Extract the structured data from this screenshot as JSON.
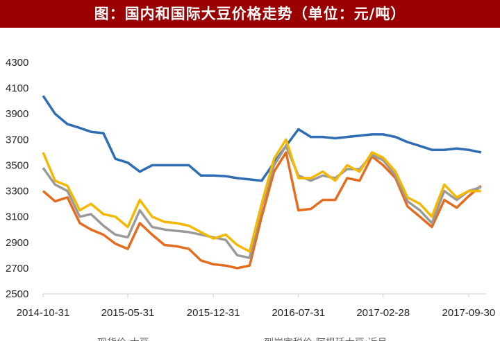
{
  "title": "图：国内和国际大豆价格走势（单位：元/吨）",
  "chart_data": {
    "type": "line",
    "title": "图：国内和国际大豆价格走势（单位：元/吨）",
    "ylim": [
      2500,
      4300
    ],
    "yticks": [
      2500,
      2700,
      2900,
      3100,
      3300,
      3500,
      3700,
      3900,
      4100,
      4300
    ],
    "xticks": [
      "2014-10-31",
      "2015-05-31",
      "2015-12-31",
      "2016-07-31",
      "2017-02-28",
      "2017-09-30"
    ],
    "grid": false,
    "legend_position": "bottom",
    "legend_entries": [
      "现货价:大豆",
      "到岸完税价:阿根廷大豆:近月"
    ],
    "x": [
      "2014-10-31",
      "2014-11-30",
      "2014-12-31",
      "2015-01-31",
      "2015-02-28",
      "2015-03-31",
      "2015-04-30",
      "2015-05-31",
      "2015-06-30",
      "2015-07-31",
      "2015-08-31",
      "2015-09-30",
      "2015-10-31",
      "2015-11-30",
      "2015-12-31",
      "2016-01-31",
      "2016-02-29",
      "2016-03-31",
      "2016-04-30",
      "2016-05-31",
      "2016-06-30",
      "2016-07-31",
      "2016-08-31",
      "2016-09-30",
      "2016-10-31",
      "2016-11-30",
      "2016-12-31",
      "2017-01-31",
      "2017-02-28",
      "2017-03-31",
      "2017-04-30",
      "2017-05-31",
      "2017-06-30",
      "2017-07-31",
      "2017-08-31",
      "2017-09-30",
      "2017-10-31"
    ],
    "series": [
      {
        "color": "#2e6db4",
        "values": [
          4040,
          3900,
          3820,
          3790,
          3760,
          3750,
          3550,
          3520,
          3450,
          3500,
          3500,
          3500,
          3500,
          3420,
          3420,
          3415,
          3400,
          3390,
          3380,
          3520,
          3650,
          3780,
          3720,
          3720,
          3710,
          3720,
          3730,
          3740,
          3740,
          3720,
          3680,
          3650,
          3620,
          3620,
          3630,
          3620,
          3600
        ]
      },
      {
        "color": "#e36c1e",
        "values": [
          3300,
          3220,
          3250,
          3050,
          3000,
          2960,
          2890,
          2850,
          3050,
          2960,
          2880,
          2870,
          2850,
          2760,
          2730,
          2720,
          2700,
          2720,
          3100,
          3450,
          3600,
          3150,
          3160,
          3230,
          3230,
          3400,
          3380,
          3570,
          3500,
          3400,
          3180,
          3100,
          3020,
          3230,
          3170,
          3260,
          3340
        ]
      },
      {
        "color": "#9a9a9a",
        "values": [
          3480,
          3350,
          3300,
          3100,
          3120,
          3030,
          2960,
          2940,
          3150,
          3020,
          3000,
          2990,
          2980,
          2960,
          2940,
          2920,
          2800,
          2780,
          3180,
          3500,
          3650,
          3420,
          3380,
          3420,
          3400,
          3470,
          3470,
          3580,
          3540,
          3420,
          3220,
          3150,
          3050,
          3300,
          3230,
          3300,
          3330
        ]
      },
      {
        "color": "#f5b800",
        "values": [
          3600,
          3380,
          3340,
          3150,
          3200,
          3120,
          3100,
          3020,
          3230,
          3100,
          3060,
          3050,
          3030,
          2980,
          2930,
          2960,
          2880,
          2830,
          3200,
          3550,
          3700,
          3400,
          3400,
          3450,
          3380,
          3500,
          3450,
          3600,
          3560,
          3450,
          3250,
          3200,
          3100,
          3350,
          3250,
          3300,
          3300
        ]
      }
    ]
  }
}
